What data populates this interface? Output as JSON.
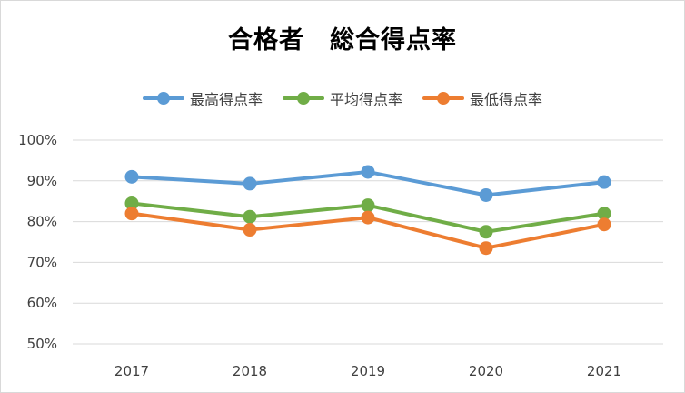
{
  "chart_data": {
    "type": "line",
    "title": "合格者　総合得点率",
    "categories": [
      "2017",
      "2018",
      "2019",
      "2020",
      "2021"
    ],
    "yticks": [
      "100%",
      "90%",
      "80%",
      "70%",
      "60%",
      "50%"
    ],
    "ylim": [
      50,
      100
    ],
    "grid": true,
    "legend_position": "top",
    "series": [
      {
        "name": "最高得点率",
        "color": "#5B9BD5",
        "values": [
          91.0,
          89.3,
          92.2,
          86.5,
          89.7
        ]
      },
      {
        "name": "平均得点率",
        "color": "#70AD47",
        "values": [
          84.5,
          81.2,
          84.0,
          77.5,
          82.0
        ]
      },
      {
        "name": "最低得点率",
        "color": "#ED7D31",
        "values": [
          82.0,
          78.0,
          81.0,
          73.5,
          79.3
        ]
      }
    ]
  }
}
